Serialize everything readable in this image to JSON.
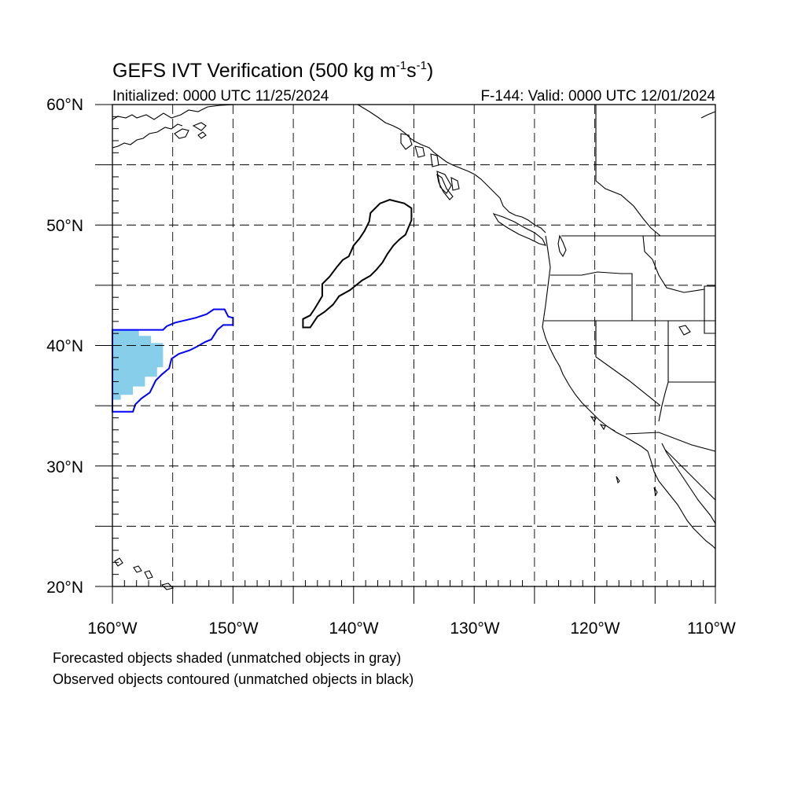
{
  "title": {
    "main": "GEFS IVT Verification (500 kg m",
    "sup1": "-1",
    "mid": "s",
    "sup2": "-1",
    "end": ")"
  },
  "subtitle_left": "Initialized: 0000 UTC 11/25/2024",
  "subtitle_right": "F-144: Valid: 0000 UTC 12/01/2024",
  "lat_labels": [
    "60°N",
    "50°N",
    "40°N",
    "30°N",
    "20°N"
  ],
  "lon_labels": [
    "160°W",
    "150°W",
    "140°W",
    "130°W",
    "120°W",
    "110°W"
  ],
  "caption_1": "Forecasted objects shaded (unmatched objects in gray)",
  "caption_2": "Observed objects contoured (unmatched objects in black)",
  "colors": {
    "forecast_matched_fill": "#87ceeb",
    "observed_matched_contour": "#0000ff",
    "observed_unmatched_contour": "#000000",
    "coastline": "#000000",
    "grid": "#000000"
  },
  "chart_data": {
    "type": "map",
    "projection": "cylindrical-equidistant",
    "lon_range": [
      -160,
      -110
    ],
    "lat_range": [
      20,
      60
    ],
    "grid_lon_step": 5,
    "grid_lat_step": 5,
    "objects": [
      {
        "kind": "forecast",
        "matched": true,
        "color": "#87ceeb",
        "polygon": [
          [
            -160,
            41.3
          ],
          [
            -157.8,
            41.3
          ],
          [
            -157.8,
            40.8
          ],
          [
            -156.8,
            40.8
          ],
          [
            -156.8,
            40.2
          ],
          [
            -155.8,
            40.2
          ],
          [
            -155.8,
            38.2
          ],
          [
            -156.3,
            38.2
          ],
          [
            -156.3,
            37.4
          ],
          [
            -157.3,
            37.4
          ],
          [
            -157.3,
            36.6
          ],
          [
            -158.3,
            36.6
          ],
          [
            -158.3,
            35.9
          ],
          [
            -159.3,
            35.9
          ],
          [
            -159.3,
            35.5
          ],
          [
            -160,
            35.5
          ]
        ]
      },
      {
        "kind": "observed",
        "matched": true,
        "color": "#0000ff",
        "polygon": [
          [
            -160,
            41.3
          ],
          [
            -155.8,
            41.3
          ],
          [
            -155.5,
            41.6
          ],
          [
            -154.8,
            41.9
          ],
          [
            -153.1,
            42.3
          ],
          [
            -152.2,
            42.6
          ],
          [
            -151.6,
            43.0
          ],
          [
            -150.7,
            43.0
          ],
          [
            -150.4,
            42.4
          ],
          [
            -150.0,
            42.3
          ],
          [
            -150.0,
            41.7
          ],
          [
            -150.8,
            41.7
          ],
          [
            -151.3,
            41.3
          ],
          [
            -151.8,
            40.5
          ],
          [
            -152.3,
            40.3
          ],
          [
            -153.0,
            39.9
          ],
          [
            -153.6,
            39.6
          ],
          [
            -154.5,
            39.3
          ],
          [
            -155.1,
            38.9
          ],
          [
            -155.3,
            38.1
          ],
          [
            -155.9,
            37.6
          ],
          [
            -156.4,
            37.1
          ],
          [
            -156.9,
            36.1
          ],
          [
            -157.6,
            35.6
          ],
          [
            -158.1,
            35.1
          ],
          [
            -158.3,
            34.5
          ],
          [
            -160,
            34.5
          ]
        ]
      },
      {
        "kind": "observed",
        "matched": false,
        "color": "#000000",
        "polygon": [
          [
            -144.2,
            41.5
          ],
          [
            -144.2,
            42.2
          ],
          [
            -143.6,
            42.5
          ],
          [
            -143.2,
            43.1
          ],
          [
            -142.6,
            44.1
          ],
          [
            -142.6,
            45.1
          ],
          [
            -142.0,
            45.7
          ],
          [
            -141.4,
            46.5
          ],
          [
            -140.9,
            47.1
          ],
          [
            -140.4,
            47.4
          ],
          [
            -140.0,
            48.3
          ],
          [
            -139.5,
            48.9
          ],
          [
            -139.1,
            49.5
          ],
          [
            -138.7,
            50.3
          ],
          [
            -138.6,
            51.0
          ],
          [
            -137.8,
            51.8
          ],
          [
            -137.0,
            52.1
          ],
          [
            -135.8,
            51.8
          ],
          [
            -135.2,
            51.4
          ],
          [
            -135.2,
            50.4
          ],
          [
            -135.7,
            49.2
          ],
          [
            -136.2,
            48.8
          ],
          [
            -136.7,
            48.3
          ],
          [
            -137.2,
            47.6
          ],
          [
            -137.6,
            46.9
          ],
          [
            -138.1,
            46.3
          ],
          [
            -138.6,
            45.8
          ],
          [
            -139.3,
            45.4
          ],
          [
            -139.8,
            45.0
          ],
          [
            -140.3,
            44.6
          ],
          [
            -141.2,
            44.1
          ],
          [
            -141.7,
            43.4
          ],
          [
            -142.4,
            42.8
          ],
          [
            -143.0,
            42.4
          ],
          [
            -143.6,
            41.5
          ]
        ]
      }
    ]
  }
}
